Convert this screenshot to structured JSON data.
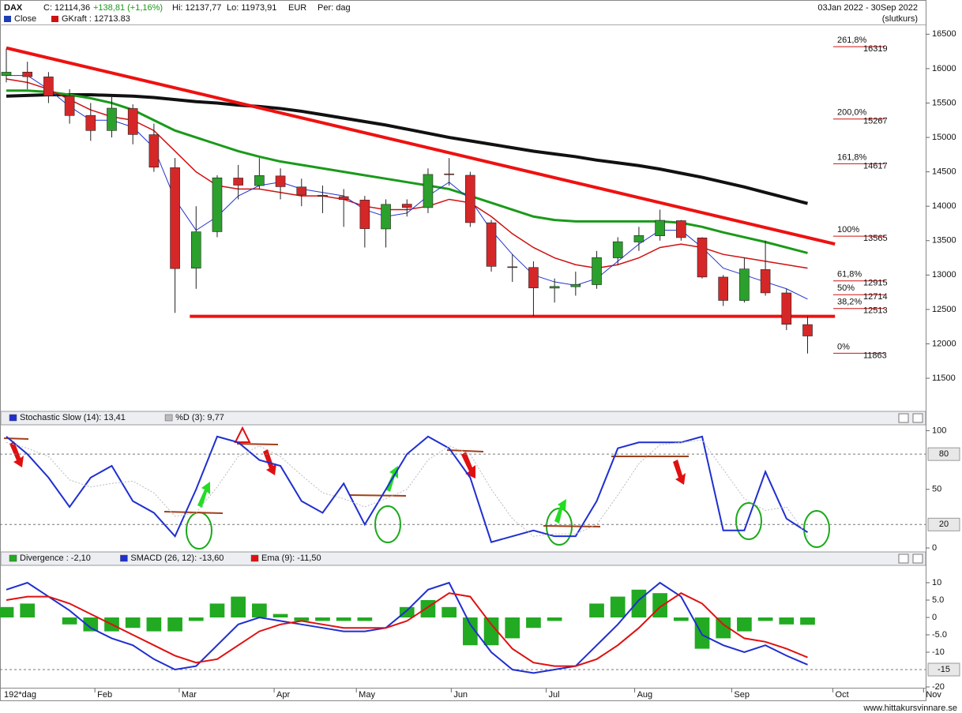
{
  "header": {
    "symbol": "DAX",
    "close": "C: 12114,36",
    "change": "+138,81 (+1,16%)",
    "high": "Hi: 12137,77",
    "low": "Lo: 11973,91",
    "currency": "EUR",
    "period": "Per: dag",
    "range": "03Jan 2022 - 30Sep 2022",
    "mode": "(slutkurs)",
    "legend": [
      {
        "name": "Close",
        "color": "#1f3fb4"
      },
      {
        "name": "GKraft : 12713.83",
        "color": "#d01010"
      }
    ]
  },
  "footer": {
    "days": "192*dag",
    "site": "www.hittakursvinnare.se"
  },
  "chart_data": [
    {
      "type": "candlestick",
      "title": "DAX",
      "xlim": [
        -0.3,
        43.6
      ],
      "xticks": [
        {
          "value": 4.2,
          "label": "Feb"
        },
        {
          "value": 8.2,
          "label": "Mar"
        },
        {
          "value": 12.7,
          "label": "Apr"
        },
        {
          "value": 16.6,
          "label": "May"
        },
        {
          "value": 21.1,
          "label": "Jun"
        },
        {
          "value": 25.6,
          "label": "Jul"
        },
        {
          "value": 29.8,
          "label": "Aug"
        },
        {
          "value": 34.4,
          "label": "Sep"
        },
        {
          "value": 39.2,
          "label": "Oct"
        },
        {
          "value": 43.5,
          "label": "Nov"
        }
      ],
      "ylim": [
        11030,
        16630
      ],
      "yticks": [
        11500,
        12000,
        12500,
        13000,
        13500,
        14000,
        14500,
        15000,
        15500,
        16000,
        16500
      ],
      "up_color": "#2ca02c",
      "down_color": "#d62728",
      "open": [
        15900,
        15950,
        15880,
        15600,
        15320,
        15100,
        15420,
        15040,
        14560,
        13100,
        13630,
        14410,
        14300,
        14440,
        14280,
        14160,
        14140,
        14090,
        13670,
        14030,
        13980,
        14470,
        14450,
        13760,
        13120,
        13110,
        12810,
        12830,
        12860,
        13250,
        13480,
        13570,
        13790,
        13540,
        12970,
        12630,
        13080,
        12740,
        12280
      ],
      "high": [
        16290,
        16100,
        15950,
        15700,
        15500,
        15600,
        15480,
        15200,
        14700,
        14000,
        14450,
        14600,
        14700,
        14550,
        14400,
        14300,
        14250,
        14150,
        14100,
        14100,
        14550,
        14700,
        14500,
        13800,
        13300,
        13200,
        12950,
        13050,
        13350,
        13550,
        13700,
        13950,
        13800,
        13550,
        13000,
        13250,
        13500,
        12800,
        12400
      ],
      "low": [
        15800,
        15700,
        15500,
        15200,
        14950,
        15000,
        14900,
        14500,
        12450,
        12800,
        13550,
        14100,
        14250,
        14100,
        14000,
        13900,
        13700,
        13400,
        13400,
        13850,
        13900,
        14300,
        13700,
        13050,
        12900,
        12400,
        12600,
        12700,
        12800,
        13150,
        13350,
        13500,
        13500,
        12950,
        12550,
        12600,
        12700,
        12200,
        11860
      ],
      "close": [
        15948,
        15883,
        15604,
        15318,
        15100,
        15425,
        15042,
        14567,
        13094,
        13628,
        14413,
        14306,
        14446,
        14284,
        14163,
        14142,
        14098,
        13674,
        14027,
        13982,
        14462,
        14460,
        13762,
        13126,
        13118,
        12813,
        12834,
        12864,
        13254,
        13484,
        13574,
        13795,
        13544,
        12971,
        12631,
        13088,
        12741,
        12284,
        12114
      ],
      "lines": [
        {
          "color": "#111111",
          "width": 4,
          "values": [
            15600,
            15610,
            15620,
            15620,
            15620,
            15610,
            15600,
            15580,
            15550,
            15520,
            15500,
            15470,
            15450,
            15420,
            15380,
            15330,
            15280,
            15230,
            15180,
            15120,
            15060,
            15000,
            14950,
            14900,
            14850,
            14800,
            14760,
            14720,
            14670,
            14630,
            14590,
            14540,
            14480,
            14420,
            14350,
            14280,
            14200,
            14120,
            14040
          ]
        },
        {
          "color": "#1a9a1a",
          "width": 3,
          "values": [
            15680,
            15680,
            15660,
            15620,
            15570,
            15500,
            15400,
            15250,
            15100,
            15000,
            14900,
            14800,
            14720,
            14650,
            14600,
            14550,
            14500,
            14450,
            14400,
            14350,
            14300,
            14250,
            14150,
            14050,
            13950,
            13850,
            13800,
            13780,
            13780,
            13780,
            13780,
            13780,
            13760,
            13700,
            13620,
            13550,
            13480,
            13400,
            13320
          ]
        },
        {
          "color": "#d01010",
          "width": 1.5,
          "values": [
            15850,
            15800,
            15700,
            15550,
            15400,
            15300,
            15250,
            15100,
            14800,
            14500,
            14300,
            14250,
            14250,
            14200,
            14150,
            14150,
            14100,
            14000,
            13950,
            13950,
            14000,
            14100,
            14050,
            13850,
            13600,
            13400,
            13250,
            13150,
            13100,
            13150,
            13250,
            13400,
            13450,
            13400,
            13300,
            13250,
            13200,
            13150,
            13100
          ]
        },
        {
          "color": "#2233cc",
          "width": 1,
          "values": [
            15900,
            15900,
            15700,
            15450,
            15250,
            15250,
            15150,
            14850,
            14100,
            13650,
            13850,
            14150,
            14300,
            14350,
            14250,
            14200,
            14150,
            13950,
            13850,
            13900,
            14150,
            14350,
            14100,
            13650,
            13300,
            13000,
            12900,
            12850,
            12950,
            13200,
            13450,
            13650,
            13650,
            13400,
            13100,
            13000,
            12900,
            12800,
            12650
          ]
        }
      ],
      "trendlines": [
        {
          "color": "#ee1111",
          "x": [
            0,
            39.3
          ],
          "y": [
            16300,
            13450
          ]
        },
        {
          "color": "#ee1111",
          "x": [
            8.7,
            39.3
          ],
          "y": [
            12400,
            12400
          ]
        }
      ],
      "fib": [
        {
          "label": "261,8%",
          "value": 16319
        },
        {
          "label": "200,0%",
          "value": 15267
        },
        {
          "label": "161,8%",
          "value": 14617
        },
        {
          "label": "100%",
          "value": 13565
        },
        {
          "label": "61,8%",
          "value": 12915
        },
        {
          "label": "50%",
          "value": 12714
        },
        {
          "label": "38,2%",
          "value": 12513
        },
        {
          "label": "0%",
          "value": 11863
        }
      ]
    },
    {
      "type": "line",
      "ylim": [
        -2,
        105
      ],
      "yticks": [
        0,
        50,
        100
      ],
      "levels": [
        80,
        20
      ],
      "series": [
        {
          "name": "Stochastic Slow (14): 13,41",
          "color": "#1f2fd0",
          "values": [
            95,
            80,
            60,
            35,
            60,
            70,
            40,
            30,
            10,
            50,
            95,
            90,
            75,
            70,
            40,
            30,
            55,
            20,
            50,
            80,
            95,
            85,
            60,
            5,
            10,
            15,
            10,
            10,
            40,
            85,
            90,
            90,
            90,
            95,
            15,
            15,
            65,
            25,
            13.41
          ]
        },
        {
          "name": "%D (3): 9,77",
          "color": "#bbbbbb",
          "values": [
            90,
            85,
            78,
            58,
            52,
            55,
            57,
            47,
            27,
            30,
            52,
            78,
            87,
            78,
            62,
            47,
            42,
            35,
            42,
            50,
            75,
            87,
            80,
            50,
            25,
            10,
            12,
            12,
            20,
            45,
            72,
            88,
            90,
            92,
            67,
            42,
            32,
            35,
            9.77
          ]
        }
      ]
    },
    {
      "type": "line",
      "ylim": [
        -20,
        15
      ],
      "yticks": [
        10,
        {
          "value": 5,
          "label": "5.0"
        },
        0,
        {
          "value": -5,
          "label": "-5.0"
        },
        -10,
        -20
      ],
      "levels": [
        -15
      ],
      "series": [
        {
          "name": "Divergence : -2,10",
          "color": "#22aa22",
          "style": "bar",
          "values": [
            3,
            4,
            0,
            -2,
            -4,
            -4,
            -3,
            -4,
            -4,
            -1,
            4,
            6,
            4,
            1,
            -1,
            -1,
            -1,
            -1,
            0,
            3,
            5,
            3,
            -8,
            -8,
            -6,
            -3,
            -1,
            0,
            4,
            6,
            8,
            7,
            -1,
            -9,
            -6,
            -4,
            -1,
            -2,
            -2.1
          ]
        },
        {
          "name": "SMACD (26, 12): -13,60",
          "color": "#1f2fd0",
          "values": [
            8,
            10,
            6,
            2,
            -3,
            -6,
            -8,
            -12,
            -15,
            -14,
            -8,
            -2,
            0,
            -1,
            -2,
            -3,
            -4,
            -4,
            -3,
            2,
            8,
            10,
            -2,
            -10,
            -15,
            -16,
            -15,
            -14,
            -8,
            -2,
            5,
            10,
            6,
            -5,
            -8,
            -10,
            -8,
            -11,
            -13.6
          ]
        },
        {
          "name": "Ema (9): -11,50",
          "color": "#e01010",
          "values": [
            5,
            6,
            6,
            4,
            1,
            -2,
            -5,
            -8,
            -11,
            -13,
            -12,
            -8,
            -4,
            -2,
            -1,
            -2,
            -3,
            -3,
            -3,
            -1,
            3,
            7,
            6,
            -2,
            -9,
            -13,
            -14,
            -14,
            -12,
            -8,
            -3,
            3,
            7,
            4,
            -2,
            -6,
            -7,
            -9,
            -11.5
          ]
        }
      ]
    }
  ]
}
